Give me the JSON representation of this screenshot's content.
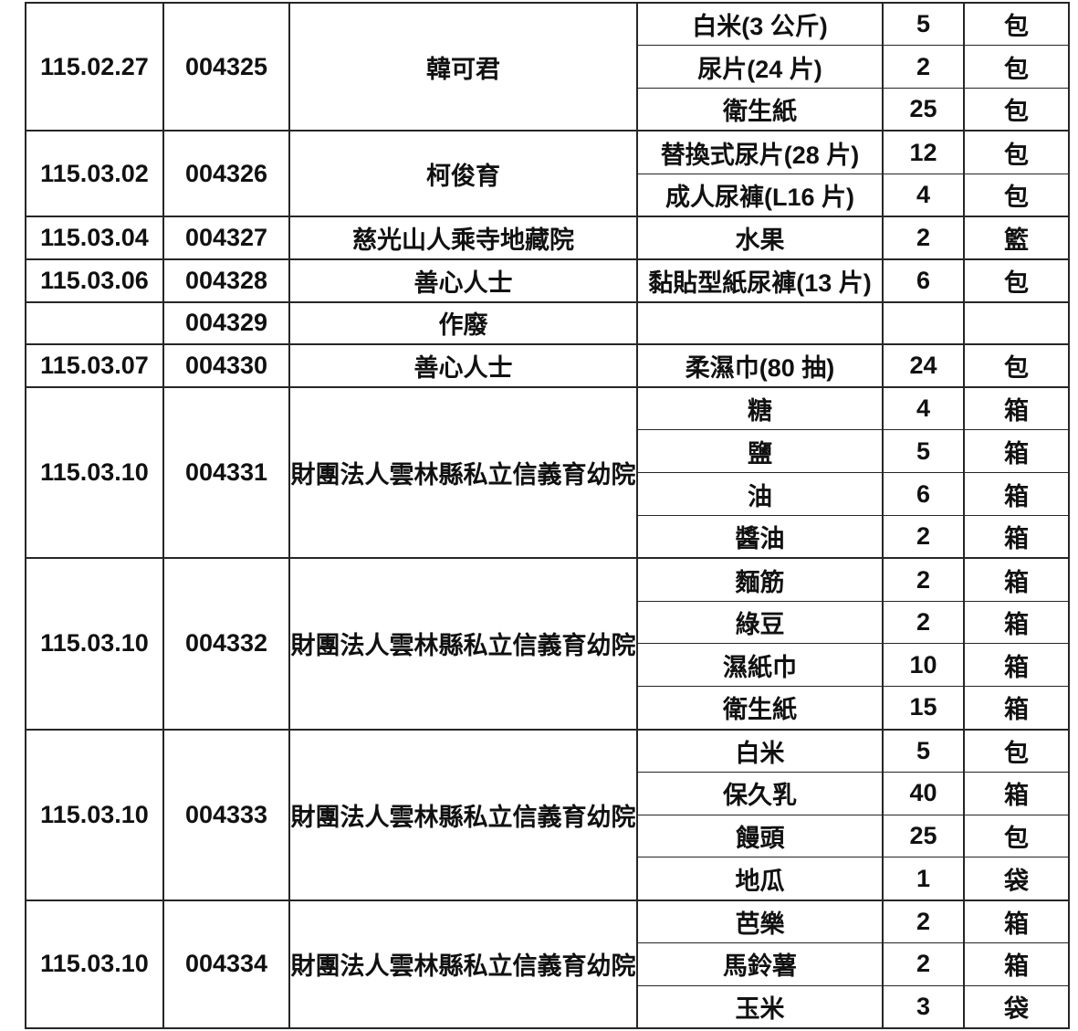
{
  "table": {
    "groups": [
      {
        "date": "115.02.27",
        "serial": "004325",
        "donor": "韓可君",
        "items": [
          {
            "name": "白米(3 公斤)",
            "qty": "5",
            "unit": "包"
          },
          {
            "name": "尿片(24 片)",
            "qty": "2",
            "unit": "包"
          },
          {
            "name": "衛生紙",
            "qty": "25",
            "unit": "包"
          }
        ]
      },
      {
        "date": "115.03.02",
        "serial": "004326",
        "donor": "柯俊育",
        "items": [
          {
            "name": "替換式尿片(28 片)",
            "qty": "12",
            "unit": "包"
          },
          {
            "name": "成人尿褲(L16 片)",
            "qty": "4",
            "unit": "包"
          }
        ]
      },
      {
        "date": "115.03.04",
        "serial": "004327",
        "donor": "慈光山人乘寺地藏院",
        "items": [
          {
            "name": "水果",
            "qty": "2",
            "unit": "籃"
          }
        ]
      },
      {
        "date": "115.03.06",
        "serial": "004328",
        "donor": "善心人士",
        "items": [
          {
            "name": "黏貼型紙尿褲(13 片)",
            "qty": "6",
            "unit": "包"
          }
        ]
      },
      {
        "date": "",
        "serial": "004329",
        "donor": "作廢",
        "items": [
          {
            "name": "",
            "qty": "",
            "unit": ""
          }
        ]
      },
      {
        "date": "115.03.07",
        "serial": "004330",
        "donor": "善心人士",
        "items": [
          {
            "name": "柔濕巾(80 抽)",
            "qty": "24",
            "unit": "包"
          }
        ]
      },
      {
        "date": "115.03.10",
        "serial": "004331",
        "donor": "財團法人雲林縣私立信義育幼院",
        "items": [
          {
            "name": "糖",
            "qty": "4",
            "unit": "箱"
          },
          {
            "name": "鹽",
            "qty": "5",
            "unit": "箱"
          },
          {
            "name": "油",
            "qty": "6",
            "unit": "箱"
          },
          {
            "name": "醬油",
            "qty": "2",
            "unit": "箱"
          }
        ]
      },
      {
        "date": "115.03.10",
        "serial": "004332",
        "donor": "財團法人雲林縣私立信義育幼院",
        "items": [
          {
            "name": "麵筋",
            "qty": "2",
            "unit": "箱"
          },
          {
            "name": "綠豆",
            "qty": "2",
            "unit": "箱"
          },
          {
            "name": "濕紙巾",
            "qty": "10",
            "unit": "箱"
          },
          {
            "name": "衛生紙",
            "qty": "15",
            "unit": "箱"
          }
        ]
      },
      {
        "date": "115.03.10",
        "serial": "004333",
        "donor": "財團法人雲林縣私立信義育幼院",
        "items": [
          {
            "name": "白米",
            "qty": "5",
            "unit": "包"
          },
          {
            "name": "保久乳",
            "qty": "40",
            "unit": "箱"
          },
          {
            "name": "饅頭",
            "qty": "25",
            "unit": "包"
          },
          {
            "name": "地瓜",
            "qty": "1",
            "unit": "袋"
          }
        ]
      },
      {
        "date": "115.03.10",
        "serial": "004334",
        "donor": "財團法人雲林縣私立信義育幼院",
        "items": [
          {
            "name": "芭樂",
            "qty": "2",
            "unit": "箱"
          },
          {
            "name": "馬鈴薯",
            "qty": "2",
            "unit": "箱"
          },
          {
            "name": "玉米",
            "qty": "3",
            "unit": "袋"
          }
        ]
      }
    ]
  }
}
